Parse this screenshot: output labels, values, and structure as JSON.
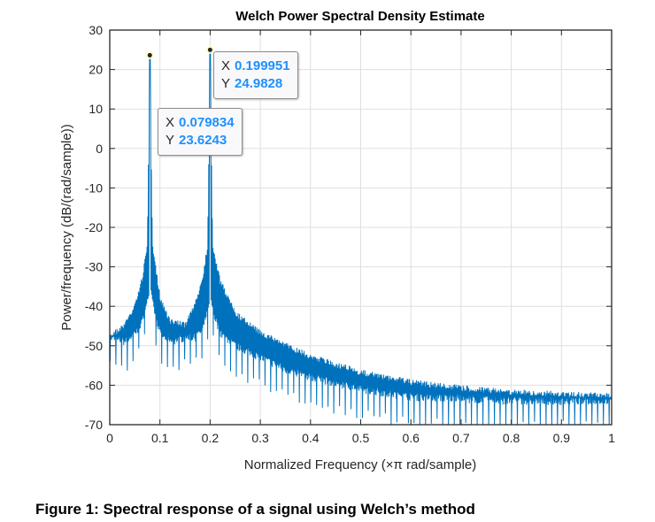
{
  "chart_data": {
    "type": "line",
    "title": "Welch Power Spectral Density Estimate",
    "xlabel": "Normalized Frequency  (×π rad/sample)",
    "ylabel": "Power/frequency (dB/(rad/sample))",
    "xlim": [
      0,
      1
    ],
    "ylim": [
      -70,
      30
    ],
    "xticks": [
      "0",
      "0.1",
      "0.2",
      "0.3",
      "0.4",
      "0.5",
      "0.6",
      "0.7",
      "0.8",
      "0.9",
      "1"
    ],
    "yticks": [
      "30",
      "20",
      "10",
      "0",
      "-10",
      "-20",
      "-30",
      "-40",
      "-50",
      "-60",
      "-70"
    ],
    "grid": true,
    "color": "#0072bd",
    "envelope": {
      "x": [
        0,
        0.03,
        0.05,
        0.065,
        0.075,
        0.0798,
        0.085,
        0.1,
        0.12,
        0.15,
        0.17,
        0.185,
        0.195,
        0.19995,
        0.205,
        0.22,
        0.25,
        0.3,
        0.35,
        0.4,
        0.5,
        0.6,
        0.7,
        0.8,
        0.9,
        1.0
      ],
      "upper": [
        -47,
        -44,
        -39,
        -32,
        -24,
        23.6243,
        -24,
        -37,
        -43,
        -44,
        -39,
        -32,
        -24,
        24.9828,
        -24,
        -33,
        -41,
        -46,
        -49,
        -52,
        -56,
        -58.5,
        -60,
        -61,
        -61.5,
        -62
      ],
      "lower": [
        -49,
        -50,
        -48,
        -45,
        -40,
        -36,
        -40,
        -48,
        -50,
        -49,
        -49,
        -47,
        -42,
        -38,
        -42,
        -48,
        -51,
        -54,
        -57,
        -59,
        -62,
        -64,
        -64.5,
        -65,
        -65,
        -65
      ]
    },
    "datatips": [
      {
        "x_label": "X",
        "x": "0.079834",
        "y_label": "Y",
        "y": "23.6243"
      },
      {
        "x_label": "X",
        "x": "0.199951",
        "y_label": "Y",
        "y": "24.9828"
      }
    ]
  },
  "caption": "Figure 1: Spectral response of a signal using Welch’s method"
}
